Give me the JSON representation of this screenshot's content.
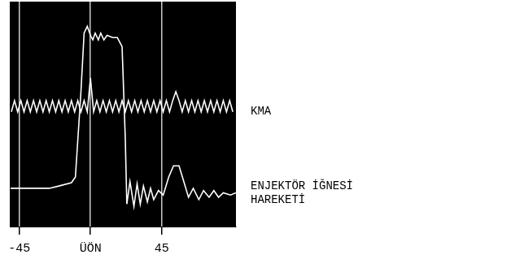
{
  "chart_data": {
    "type": "line",
    "xlim": [
      -51,
      92
    ],
    "ylim": [
      0,
      100
    ],
    "xticks": [
      -45,
      {
        "value": 0,
        "label": "ÜÖN"
      },
      45
    ],
    "grid": true,
    "tick_labels": "x",
    "series": [
      {
        "name": "KMA",
        "color": "#ffffff",
        "x": [
          -50,
          -48,
          -46,
          -44,
          -42,
          -40,
          -38,
          -36,
          -34,
          -32,
          -30,
          -28,
          -26,
          -24,
          -22,
          -20,
          -18,
          -16,
          -14,
          -12,
          -10,
          -8,
          -6,
          -4,
          -2,
          0,
          2,
          4,
          6,
          8,
          10,
          12,
          14,
          16,
          18,
          20,
          22,
          24,
          26,
          28,
          30,
          32,
          34,
          36,
          38,
          40,
          42,
          44,
          46,
          48,
          50,
          52,
          54,
          56,
          58,
          60,
          62,
          64,
          66,
          68,
          70,
          72,
          74,
          76,
          78,
          80,
          82,
          84,
          86,
          88,
          90
        ],
        "values": [
          51,
          56,
          51,
          56,
          51,
          56,
          51,
          56,
          51,
          56,
          51,
          56,
          51,
          56,
          51,
          56,
          51,
          56,
          51,
          56,
          51,
          56,
          51,
          56,
          51,
          66,
          51,
          56,
          51,
          56,
          51,
          56,
          51,
          56,
          51,
          56,
          51,
          56,
          51,
          56,
          51,
          56,
          51,
          56,
          51,
          56,
          51,
          56,
          51,
          56,
          51,
          56,
          60,
          56,
          51,
          56,
          51,
          56,
          51,
          56,
          51,
          56,
          51,
          56,
          51,
          56,
          51,
          56,
          51,
          56,
          51
        ]
      },
      {
        "name": "ENJEKTÖR İĞNESİ HAREKETİ",
        "color": "#ffffff",
        "x": [
          -50.5,
          -26,
          -20,
          -12,
          -9.5,
          -6,
          -4,
          -2,
          0,
          1.5,
          3,
          5,
          6.5,
          8.5,
          10.5,
          14,
          17,
          20,
          22,
          23,
          25,
          27.5,
          29.5,
          31.5,
          33.5,
          36,
          38,
          40,
          43,
          46,
          49.5,
          52.5,
          56,
          59,
          62,
          65,
          68.5,
          71.5,
          75,
          78,
          81,
          84,
          88.5,
          92
        ],
        "values": [
          17,
          17,
          18,
          19.5,
          22,
          60,
          86,
          89,
          85,
          83,
          86,
          83,
          86,
          83,
          85,
          84,
          84,
          80,
          40,
          10,
          20,
          9,
          19,
          10,
          18,
          11,
          17,
          12,
          16,
          14,
          22,
          27,
          27,
          20,
          13,
          17,
          12,
          16,
          13,
          16,
          13,
          15,
          14,
          15
        ]
      }
    ]
  }
}
